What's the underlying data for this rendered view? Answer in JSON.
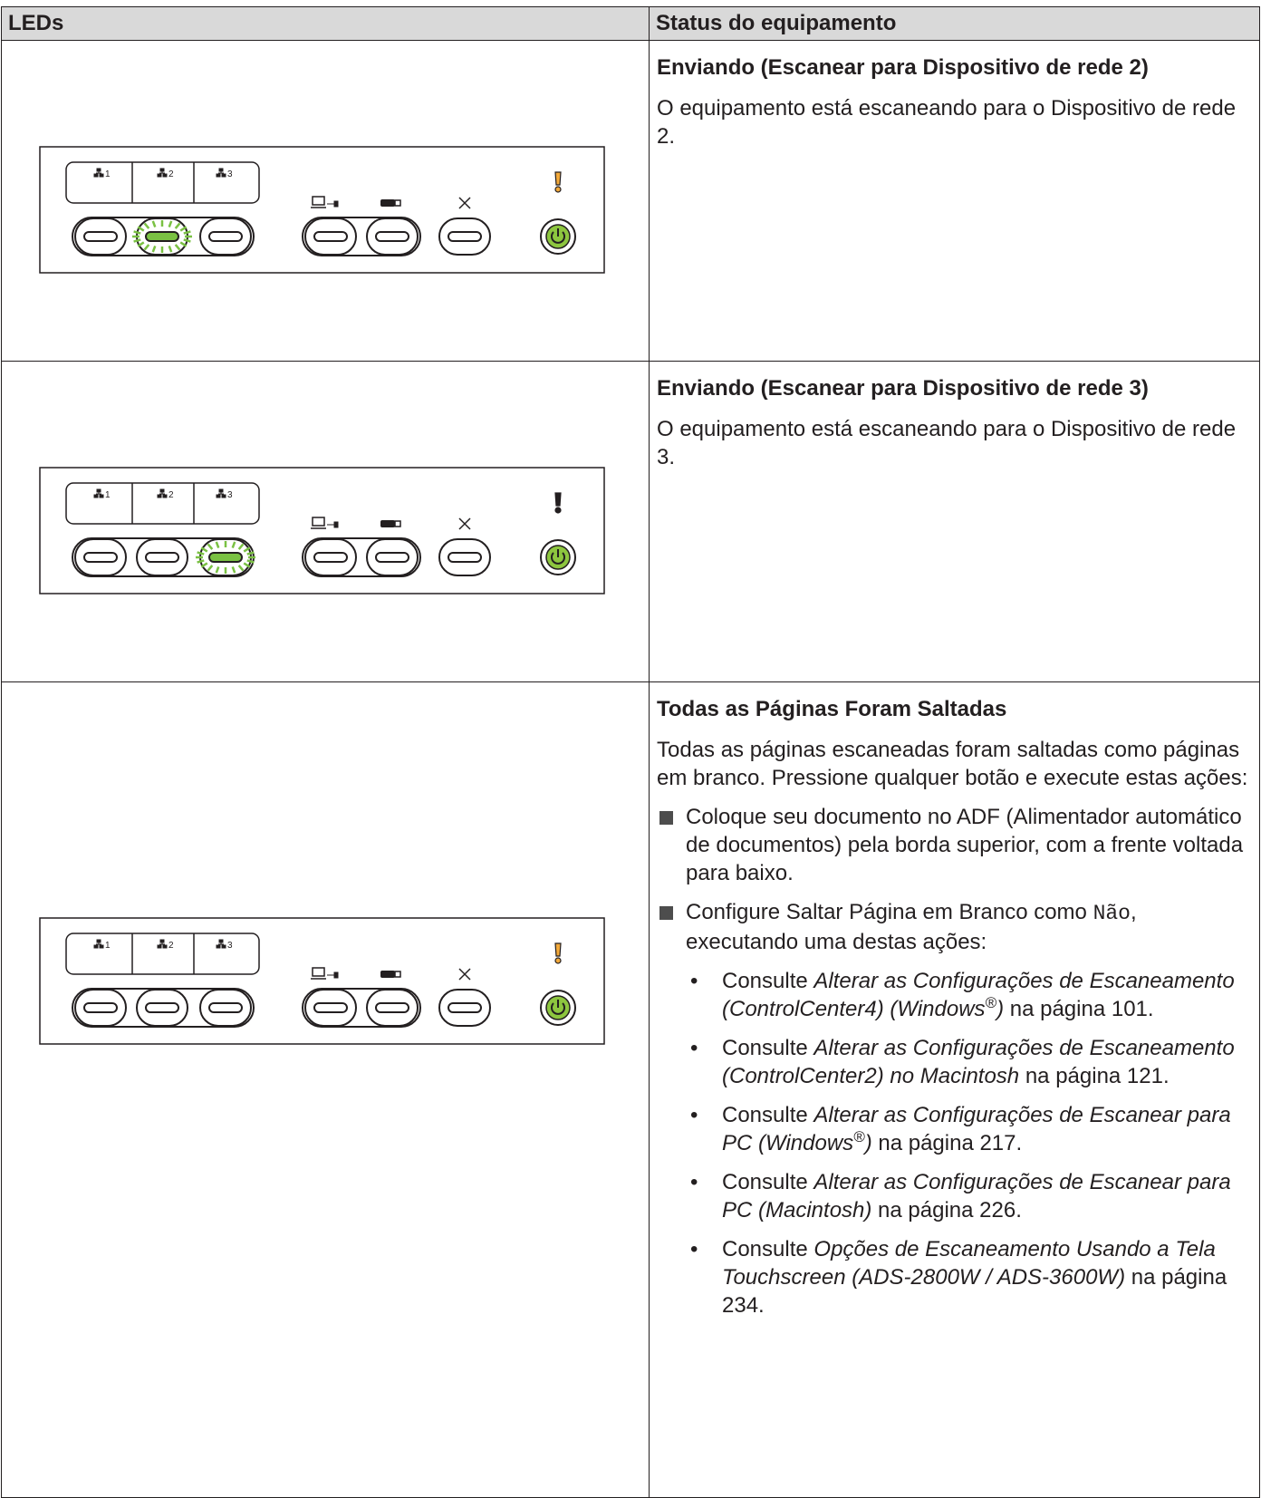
{
  "table": {
    "headers": [
      "LEDs",
      "Status do equipamento"
    ],
    "panel_labels": [
      "1",
      "2",
      "3"
    ],
    "rows": [
      {
        "title": "Enviando (Escanear para Dispositivo de rede 2)",
        "text": "O equipamento está escaneando para o Dispositivo de rede 2."
      },
      {
        "title": "Enviando (Escanear para Dispositivo de rede 3)",
        "text": "O equipamento está escaneando para o Dispositivo de rede 3."
      },
      {
        "title": "Todas as Páginas Foram Saltadas",
        "text": "Todas as páginas escaneadas foram saltadas como páginas em branco. Pressione qualquer botão e execute estas ações:",
        "items": [
          {
            "text": "Coloque seu documento no ADF (Alimentador automático de documentos) pela borda superior, com a frente voltada para baixo."
          },
          {
            "text": "Configure Saltar Página em Branco como",
            "code": "Não",
            "rest": ", executando uma destas ações:",
            "refs": [
              {
                "lead": "Consulte",
                "ref": "Alterar as Configurações de Escaneamento (ControlCenter4) (Windows",
                "sup": "®",
                "close": ")",
                "page": "na página 101."
              },
              {
                "lead": "Consulte",
                "ref": "Alterar as Configurações de Escaneamento (ControlCenter2) no Macintosh",
                "page": "na página 121."
              },
              {
                "lead": "Consulte",
                "ref": "Alterar as Configurações de Escanear para PC (Windows",
                "sup": "®",
                "close": ")",
                "page": "na página 217."
              },
              {
                "lead": "Consulte",
                "ref": "Alterar as Configurações de Escanear para PC (Macintosh)",
                "page": "na página 226."
              },
              {
                "lead": "Consulte",
                "ref": "Opções de Escaneamento Usando a Tela Touchscreen (ADS-2800W / ADS-3600W)",
                "page": "na página 234."
              }
            ]
          }
        ]
      }
    ]
  }
}
